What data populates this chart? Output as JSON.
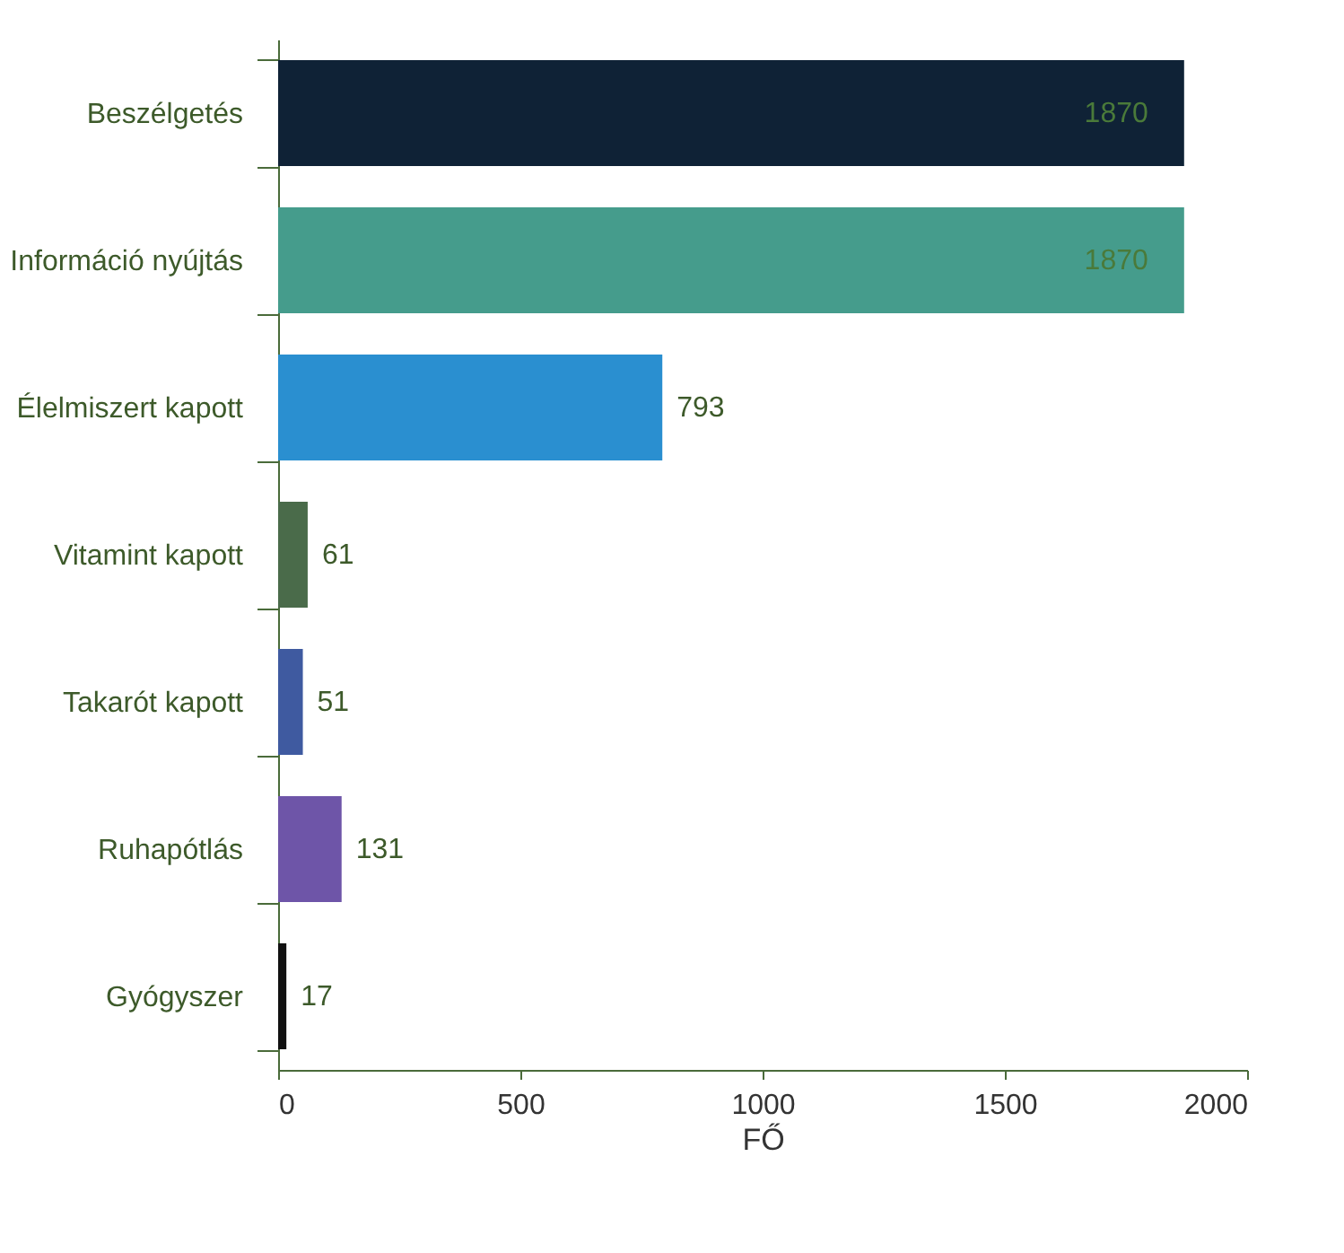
{
  "chart_data": {
    "type": "bar",
    "orientation": "horizontal",
    "xlabel": "FŐ",
    "categories": [
      "Beszélgetés",
      "Információ nyújtás",
      "Élelmiszert kapott",
      "Vitamint kapott",
      "Takarót kapott",
      "Ruhapótlás",
      "Gyógyszer"
    ],
    "values": [
      1870,
      1870,
      793,
      61,
      51,
      131,
      17
    ],
    "colors": [
      "#0f2236",
      "#459c8c",
      "#2a8fd0",
      "#4a6b4a",
      "#3f5aa0",
      "#6e55a8",
      "#111111"
    ],
    "xlim": [
      0,
      2000
    ],
    "xticks": [
      0,
      500,
      1000,
      1500,
      2000
    ],
    "data_labels": true,
    "grid": false
  }
}
